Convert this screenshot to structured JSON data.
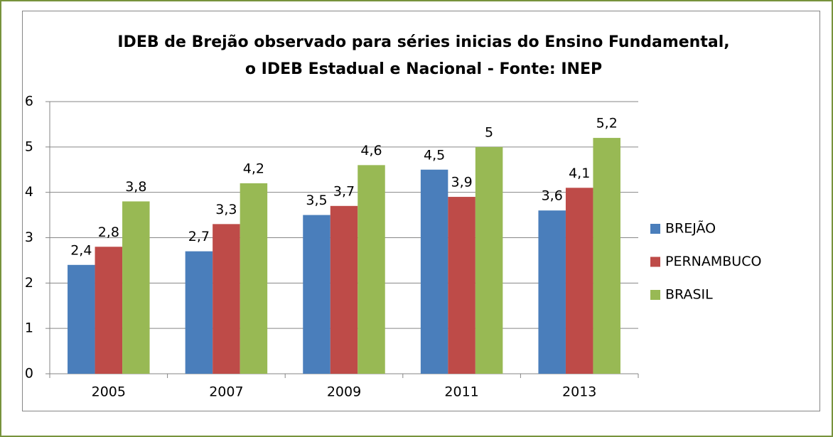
{
  "chart_data": {
    "type": "bar",
    "title": [
      "IDEB de Brejão observado para séries inicias do Ensino Fundamental,",
      "o IDEB Estadual e Nacional - Fonte: INEP"
    ],
    "categories": [
      "2005",
      "2007",
      "2009",
      "2011",
      "2013"
    ],
    "series": [
      {
        "name": "BREJÃO",
        "color": "#4a7ebb",
        "values": [
          2.4,
          2.7,
          3.5,
          4.5,
          3.6
        ],
        "value_labels": [
          "2,4",
          "2,7",
          "3,5",
          "4,5",
          "3,6"
        ]
      },
      {
        "name": "PERNAMBUCO",
        "color": "#be4b48",
        "values": [
          2.8,
          3.3,
          3.7,
          3.9,
          4.1
        ],
        "value_labels": [
          "2,8",
          "3,3",
          "3,7",
          "3,9",
          "4,1"
        ]
      },
      {
        "name": "BRASIL",
        "color": "#98b954",
        "values": [
          3.8,
          4.2,
          4.6,
          5,
          5.2
        ],
        "value_labels": [
          "3,8",
          "4,2",
          "4,6",
          "5",
          "5,2"
        ]
      }
    ],
    "ylim": [
      0,
      6
    ],
    "yticks": [
      0,
      1,
      2,
      3,
      4,
      5,
      6
    ],
    "grid": true,
    "legend": "right"
  }
}
